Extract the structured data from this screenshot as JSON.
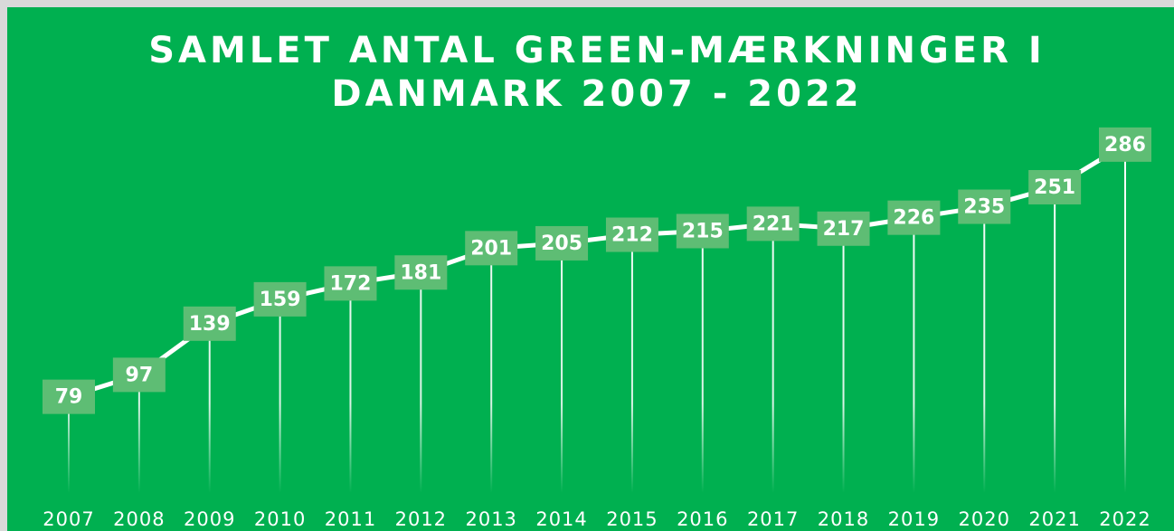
{
  "chart_data": {
    "type": "line",
    "title": "SAMLET ANTAL GREEN-MÆRKNINGER I DANMARK 2007 - 2022",
    "categories": [
      "2007",
      "2008",
      "2009",
      "2010",
      "2011",
      "2012",
      "2013",
      "2014",
      "2015",
      "2016",
      "2017",
      "2018",
      "2019",
      "2020",
      "2021",
      "2022"
    ],
    "values": [
      79,
      97,
      139,
      159,
      172,
      181,
      201,
      205,
      212,
      215,
      221,
      217,
      226,
      235,
      251,
      286
    ],
    "color": "#ffffff",
    "ylim": [
      0,
      300
    ]
  }
}
